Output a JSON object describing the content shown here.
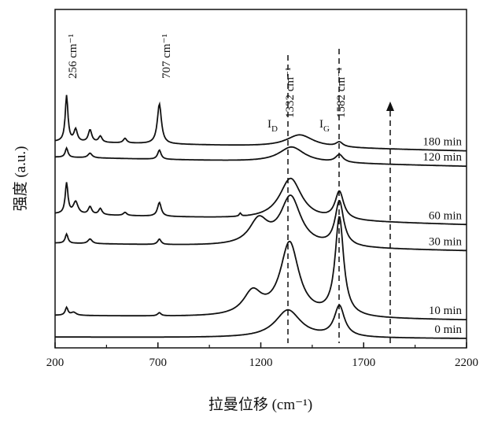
{
  "chart_data": {
    "type": "line",
    "xlabel": "拉曼位移 (cm⁻¹)",
    "ylabel": "强度 (a.u.)",
    "xlim": [
      200,
      2200
    ],
    "xticks": [
      "200",
      "700",
      "1200",
      "1700",
      "2200"
    ],
    "y_ticks_shown": false,
    "grid": false,
    "peak_annotations": [
      {
        "text": "256 cm⁻¹",
        "x": 256
      },
      {
        "text": "707 cm⁻¹",
        "x": 707
      },
      {
        "text": "1332 cm⁻¹",
        "x": 1332
      },
      {
        "text": "1582 cm⁻¹",
        "x": 1582
      }
    ],
    "band_labels": [
      {
        "main": "I",
        "sub": "D",
        "x": 1332
      },
      {
        "main": "I",
        "sub": "G",
        "x": 1582
      }
    ],
    "arrow": {
      "x": 1830,
      "direction": "up",
      "style": "dashed"
    },
    "series": [
      {
        "name": "0 min",
        "baseline": 0.2,
        "tilt": -0.1,
        "peaks": [
          [
            1332,
            1.8,
            75
          ],
          [
            1582,
            2.0,
            30
          ]
        ]
      },
      {
        "name": "10 min",
        "baseline": 1.6,
        "tilt": -0.3,
        "peaks": [
          [
            256,
            0.5,
            8
          ],
          [
            290,
            0.2,
            15
          ],
          [
            707,
            0.2,
            10
          ],
          [
            1160,
            1.5,
            55
          ],
          [
            1340,
            4.8,
            55
          ],
          [
            1582,
            6.4,
            25
          ]
        ]
      },
      {
        "name": "30 min",
        "baseline": 6.3,
        "tilt": -0.5,
        "peaks": [
          [
            256,
            0.6,
            8
          ],
          [
            370,
            0.3,
            12
          ],
          [
            707,
            0.35,
            10
          ],
          [
            1190,
            1.6,
            55
          ],
          [
            1345,
            3.2,
            60
          ],
          [
            1582,
            2.9,
            25
          ]
        ]
      },
      {
        "name": "60 min",
        "baseline": 8.2,
        "tilt": -0.7,
        "peaks": [
          [
            256,
            2.0,
            8
          ],
          [
            300,
            0.8,
            14
          ],
          [
            370,
            0.5,
            10
          ],
          [
            420,
            0.4,
            10
          ],
          [
            540,
            0.2,
            10
          ],
          [
            707,
            0.9,
            11
          ],
          [
            1100,
            0.2,
            6
          ],
          [
            1345,
            2.7,
            65
          ],
          [
            1582,
            1.8,
            25
          ]
        ]
      },
      {
        "name": "120 min",
        "baseline": 11.9,
        "tilt": -0.6,
        "peaks": [
          [
            256,
            0.6,
            8
          ],
          [
            370,
            0.3,
            12
          ],
          [
            707,
            0.6,
            10
          ],
          [
            1350,
            1.0,
            75
          ],
          [
            1582,
            0.5,
            22
          ]
        ]
      },
      {
        "name": "180 min",
        "baseline": 12.9,
        "tilt": -0.6,
        "peaks": [
          [
            256,
            3.0,
            8
          ],
          [
            300,
            0.8,
            10
          ],
          [
            370,
            0.8,
            10
          ],
          [
            420,
            0.4,
            10
          ],
          [
            540,
            0.3,
            10
          ],
          [
            707,
            2.6,
            12
          ],
          [
            1390,
            0.8,
            80
          ],
          [
            1582,
            0.3,
            20
          ]
        ]
      }
    ]
  }
}
